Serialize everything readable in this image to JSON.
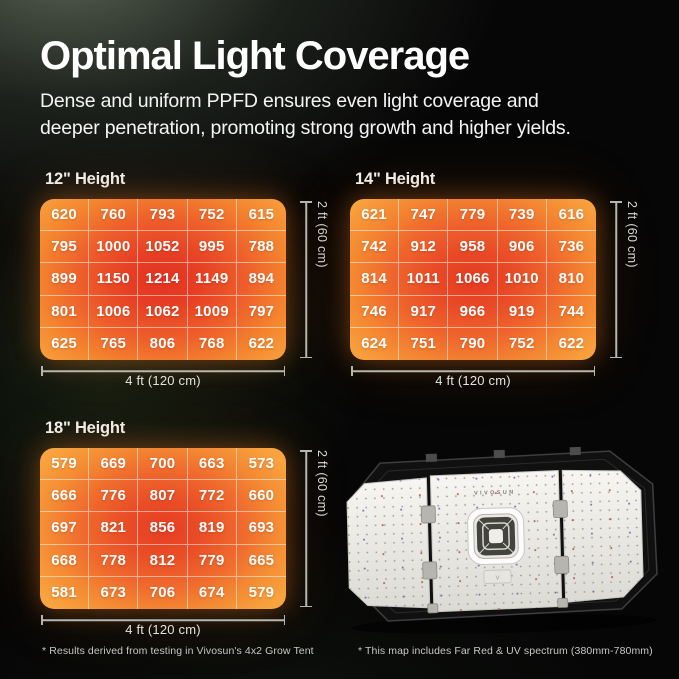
{
  "header": {
    "title": "Optimal Light Coverage",
    "subtitle_line1": "Dense and uniform PPFD ensures even light coverage and",
    "subtitle_line2": "deeper penetration, promoting strong growth and higher yields."
  },
  "chart_data": [
    {
      "type": "heatmap",
      "title": "12\" Height",
      "rows": 5,
      "cols": 5,
      "values": [
        [
          620,
          760,
          793,
          752,
          615
        ],
        [
          795,
          1000,
          1052,
          995,
          788
        ],
        [
          899,
          1150,
          1214,
          1149,
          894
        ],
        [
          801,
          1006,
          1062,
          1009,
          797
        ],
        [
          625,
          765,
          806,
          768,
          622
        ]
      ],
      "x_dim_label": "4 ft (120 cm)",
      "y_dim_label": "2 ft (60 cm)",
      "colormap": "orange-to-red, hottest at center",
      "legend": "none"
    },
    {
      "type": "heatmap",
      "title": "14\" Height",
      "rows": 5,
      "cols": 5,
      "values": [
        [
          621,
          747,
          779,
          739,
          616
        ],
        [
          742,
          912,
          958,
          906,
          736
        ],
        [
          814,
          1011,
          1066,
          1010,
          810
        ],
        [
          746,
          917,
          966,
          919,
          744
        ],
        [
          624,
          751,
          790,
          752,
          622
        ]
      ],
      "x_dim_label": "4 ft (120 cm)",
      "y_dim_label": "2 ft (60 cm)",
      "colormap": "orange-to-red, hottest at center",
      "legend": "none"
    },
    {
      "type": "heatmap",
      "title": "18\" Height",
      "rows": 5,
      "cols": 5,
      "values": [
        [
          579,
          669,
          700,
          663,
          573
        ],
        [
          666,
          776,
          807,
          772,
          660
        ],
        [
          697,
          821,
          856,
          819,
          693
        ],
        [
          668,
          778,
          812,
          779,
          665
        ],
        [
          581,
          673,
          706,
          674,
          579
        ]
      ],
      "x_dim_label": "4 ft (120 cm)",
      "y_dim_label": "2 ft (60 cm)",
      "colormap": "orange-to-red, hottest at center",
      "legend": "none"
    }
  ],
  "product": {
    "brand": "VIVOSUN",
    "tab_label": "V"
  },
  "footnotes": {
    "left": "* Results derived from testing in Vivosun's 4x2 Grow Tent",
    "right": "* This map includes Far Red & UV spectrum (380mm-780mm)"
  },
  "colors": {
    "heat_center": "#e8382b",
    "heat_edge": "#f89d3c",
    "grid_line": "rgba(255,255,255,0.5)",
    "dimension_line": "#b6b6ae",
    "background_tint": "#39423a",
    "glow": "rgba(245,130,35,0.38)"
  }
}
